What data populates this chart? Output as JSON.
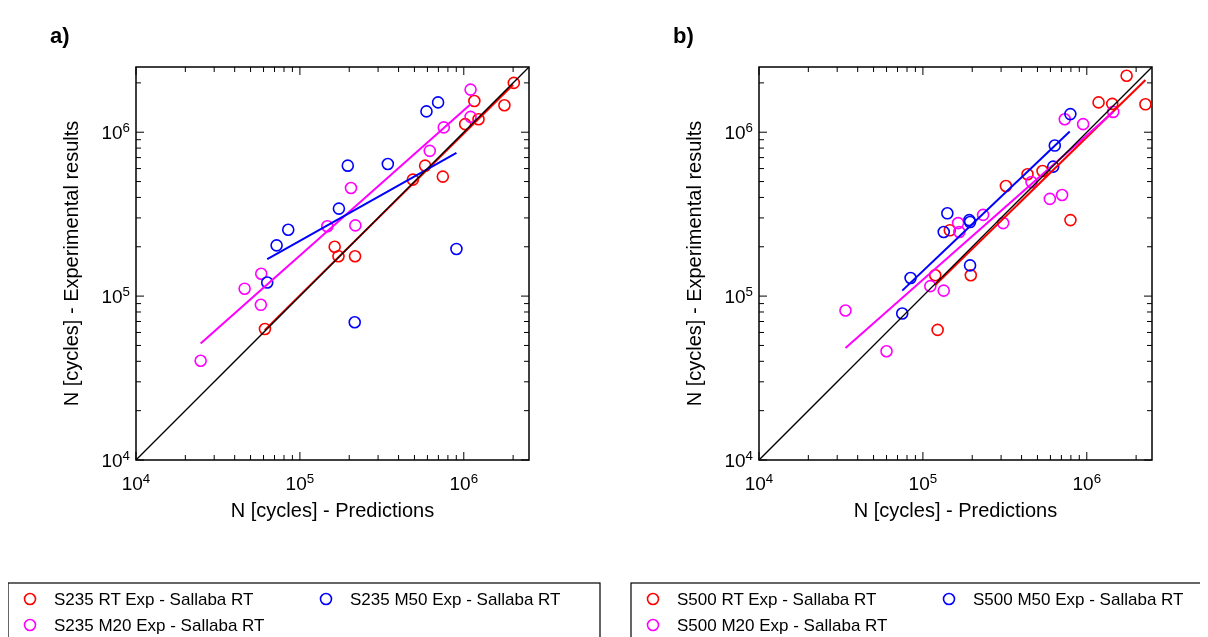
{
  "chart_data": [
    {
      "type": "scatter",
      "title": "a)",
      "xlabel": "N [cycles] - Predictions",
      "ylabel": "N [cycles] - Experimental results",
      "log": "xy",
      "legend": "bottom",
      "xlim": [
        10000,
        2500000
      ],
      "ylim": [
        10000,
        2500000
      ],
      "xticks": [
        {
          "value": 10000,
          "label": "10$^{4}$"
        },
        {
          "value": 20000,
          "label": null
        },
        {
          "value": 30000,
          "label": null
        },
        {
          "value": 40000,
          "label": null
        },
        {
          "value": 50000,
          "label": null
        },
        {
          "value": 60000,
          "label": null
        },
        {
          "value": 70000,
          "label": null
        },
        {
          "value": 80000,
          "label": null
        },
        {
          "value": 90000,
          "label": null
        },
        {
          "value": 100000,
          "label": "10$^{5}$"
        },
        {
          "value": 200000,
          "label": null
        },
        {
          "value": 300000,
          "label": null
        },
        {
          "value": 400000,
          "label": null
        },
        {
          "value": 500000,
          "label": null
        },
        {
          "value": 600000,
          "label": null
        },
        {
          "value": 700000,
          "label": null
        },
        {
          "value": 800000,
          "label": null
        },
        {
          "value": 900000,
          "label": null
        },
        {
          "value": 1000000,
          "label": "10$^{6}$"
        },
        {
          "value": 2000000,
          "label": null
        }
      ],
      "yticks": [
        {
          "value": 10000,
          "label": "10$^{4}$"
        },
        {
          "value": 20000,
          "label": null
        },
        {
          "value": 30000,
          "label": null
        },
        {
          "value": 40000,
          "label": null
        },
        {
          "value": 50000,
          "label": null
        },
        {
          "value": 60000,
          "label": null
        },
        {
          "value": 70000,
          "label": null
        },
        {
          "value": 80000,
          "label": null
        },
        {
          "value": 90000,
          "label": null
        },
        {
          "value": 100000,
          "label": "10$^{5}$"
        },
        {
          "value": 200000,
          "label": null
        },
        {
          "value": 300000,
          "label": null
        },
        {
          "value": 400000,
          "label": null
        },
        {
          "value": 500000,
          "label": null
        },
        {
          "value": 600000,
          "label": null
        },
        {
          "value": 700000,
          "label": null
        },
        {
          "value": 800000,
          "label": null
        },
        {
          "value": 900000,
          "label": null
        },
        {
          "value": 1000000,
          "label": "10$^{6}$"
        },
        {
          "value": 2000000,
          "label": null
        }
      ],
      "series": [
        {
          "name": "S235 RT Exp - Sallaba RT",
          "marker": "circle",
          "color": "#ff0000",
          "x": [
            61200,
            163000,
            172000,
            217000,
            489000,
            581000,
            745000,
            1020000,
            1160000,
            1230000,
            1770000,
            2020000
          ],
          "values": [
            63000,
            200000,
            175000,
            175000,
            514000,
            625000,
            536000,
            1120000,
            1550000,
            1200000,
            1460000,
            2000000
          ]
        },
        {
          "name": "S235 M20 Exp - Sallaba RT",
          "marker": "circle",
          "color": "#ff00ff",
          "x": [
            24800,
            46000,
            58100,
            57800,
            147000,
            205000,
            218000,
            620000,
            755000,
            1100000,
            1100000
          ],
          "values": [
            40300,
            111000,
            137000,
            88500,
            267000,
            457000,
            270000,
            769000,
            1070000,
            1240000,
            1820000
          ]
        },
        {
          "name": "S235 M50 Exp - Sallaba RT",
          "marker": "circle",
          "color": "#0000ff",
          "x": [
            63200,
            72100,
            84900,
            173000,
            196000,
            216000,
            344000,
            592000,
            697000,
            902000
          ],
          "values": [
            121000,
            204000,
            254000,
            342000,
            625000,
            69300,
            640000,
            1340000,
            1520000,
            194000
          ]
        },
        {
          "type": "line",
          "color": "#ff0000",
          "x": [
            61000,
            2000000
          ],
          "values": [
            62000,
            1950000
          ]
        },
        {
          "type": "line",
          "color": "#ff00ff",
          "x": [
            24800,
            1100000
          ],
          "values": [
            51400,
            1480000
          ]
        },
        {
          "type": "line",
          "color": "#0000ff",
          "x": [
            63200,
            902000
          ],
          "values": [
            168000,
            748000
          ]
        },
        {
          "type": "line",
          "color": "#000000",
          "x": [
            10000,
            2500000
          ],
          "values": [
            10000,
            2500000
          ]
        }
      ]
    },
    {
      "type": "scatter",
      "title": "b)",
      "xlabel": "N [cycles] - Predictions",
      "ylabel": "N [cycles] - Experimental results",
      "log": "xy",
      "legend": "bottom",
      "xlim": [
        10000,
        2500000
      ],
      "ylim": [
        10000,
        2500000
      ],
      "xticks": [
        {
          "value": 10000,
          "label": "10$^{4}$"
        },
        {
          "value": 20000,
          "label": null
        },
        {
          "value": 30000,
          "label": null
        },
        {
          "value": 40000,
          "label": null
        },
        {
          "value": 50000,
          "label": null
        },
        {
          "value": 60000,
          "label": null
        },
        {
          "value": 70000,
          "label": null
        },
        {
          "value": 80000,
          "label": null
        },
        {
          "value": 90000,
          "label": null
        },
        {
          "value": 100000,
          "label": "10$^{5}$"
        },
        {
          "value": 200000,
          "label": null
        },
        {
          "value": 300000,
          "label": null
        },
        {
          "value": 400000,
          "label": null
        },
        {
          "value": 500000,
          "label": null
        },
        {
          "value": 600000,
          "label": null
        },
        {
          "value": 700000,
          "label": null
        },
        {
          "value": 800000,
          "label": null
        },
        {
          "value": 900000,
          "label": null
        },
        {
          "value": 1000000,
          "label": "10$^{6}$"
        },
        {
          "value": 2000000,
          "label": null
        }
      ],
      "yticks": [
        {
          "value": 10000,
          "label": "10$^{4}$"
        },
        {
          "value": 20000,
          "label": null
        },
        {
          "value": 30000,
          "label": null
        },
        {
          "value": 40000,
          "label": null
        },
        {
          "value": 50000,
          "label": null
        },
        {
          "value": 60000,
          "label": null
        },
        {
          "value": 70000,
          "label": null
        },
        {
          "value": 80000,
          "label": null
        },
        {
          "value": 90000,
          "label": null
        },
        {
          "value": 100000,
          "label": "10$^{5}$"
        },
        {
          "value": 200000,
          "label": null
        },
        {
          "value": 300000,
          "label": null
        },
        {
          "value": 400000,
          "label": null
        },
        {
          "value": 500000,
          "label": null
        },
        {
          "value": 600000,
          "label": null
        },
        {
          "value": 700000,
          "label": null
        },
        {
          "value": 800000,
          "label": null
        },
        {
          "value": 900000,
          "label": null
        },
        {
          "value": 1000000,
          "label": "10$^{6}$"
        },
        {
          "value": 2000000,
          "label": null
        }
      ],
      "series": [
        {
          "name": "S500 RT Exp - Sallaba RT",
          "marker": "circle",
          "color": "#ff0000",
          "x": [
            119000,
            146000,
            123000,
            196000,
            321000,
            435000,
            537000,
            795000,
            1180000,
            1430000,
            1750000,
            2280000
          ],
          "values": [
            134000,
            252000,
            62200,
            134000,
            470000,
            554000,
            580000,
            291000,
            1520000,
            1490000,
            2210000,
            1480000
          ]
        },
        {
          "name": "S500 M20 Exp - Sallaba RT",
          "marker": "circle",
          "color": "#ff00ff",
          "x": [
            33700,
            60000,
            111000,
            134000,
            164000,
            167000,
            233000,
            309000,
            460000,
            595000,
            707000,
            734000,
            950000,
            1450000
          ],
          "values": [
            81700,
            46100,
            115000,
            108000,
            279000,
            246000,
            313000,
            279000,
            497000,
            392000,
            414000,
            1200000,
            1120000,
            1330000
          ]
        },
        {
          "name": "S500 M50 Exp - Sallaba RT",
          "marker": "circle",
          "color": "#0000ff",
          "x": [
            74800,
            84100,
            134000,
            141000,
            192000,
            194000,
            194000,
            624000,
            638000,
            794000
          ],
          "values": [
            78300,
            129000,
            246000,
            320000,
            291000,
            283000,
            154000,
            617000,
            829000,
            1290000
          ]
        },
        {
          "type": "line",
          "color": "#ff0000",
          "x": [
            119000,
            2280000
          ],
          "values": [
            117000,
            2080000
          ]
        },
        {
          "type": "line",
          "color": "#ff00ff",
          "x": [
            33700,
            1450000
          ],
          "values": [
            48300,
            1330000
          ]
        },
        {
          "type": "line",
          "color": "#0000ff",
          "x": [
            74800,
            787000
          ],
          "values": [
            108000,
            1010000
          ]
        },
        {
          "type": "line",
          "color": "#000000",
          "x": [
            10000,
            2500000
          ],
          "values": [
            10000,
            2500000
          ]
        }
      ]
    }
  ]
}
